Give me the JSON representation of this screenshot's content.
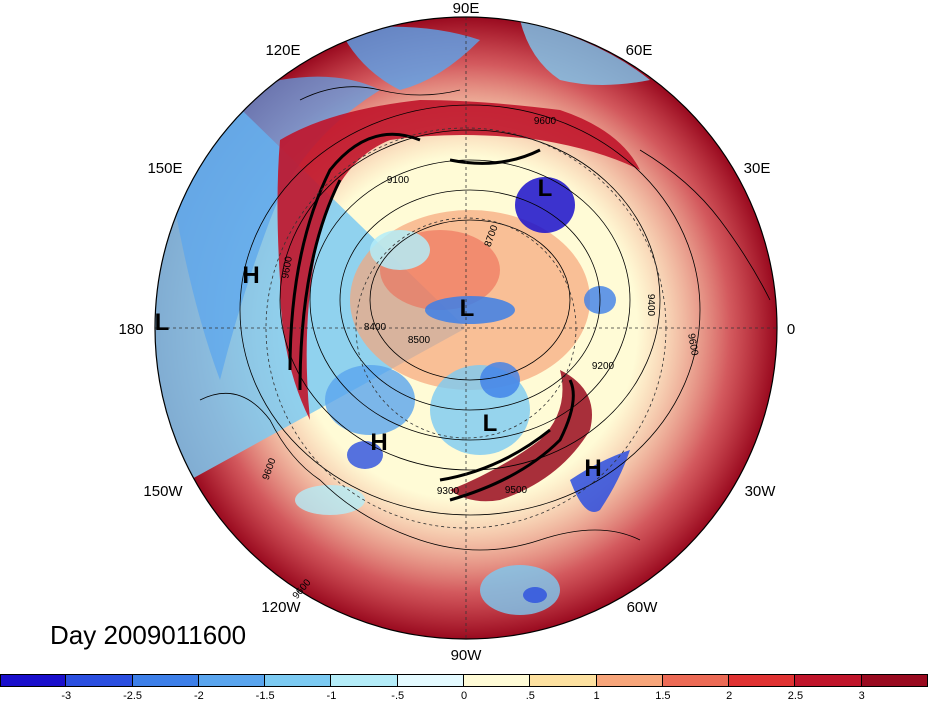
{
  "title": "Day 2009011600",
  "longitude_labels": {
    "top": "90E",
    "upper_left": "120E",
    "upper_right": "60E",
    "left_upper": "150E",
    "right_upper": "30E",
    "left": "180",
    "right": "0",
    "left_lower": "150W",
    "right_lower": "30W",
    "lower_left": "120W",
    "lower_right": "60W",
    "bottom": "90W"
  },
  "pressure_centers": [
    {
      "type": "H",
      "region": "north-pacific"
    },
    {
      "type": "L",
      "region": "dateline"
    },
    {
      "type": "L",
      "region": "north-pole"
    },
    {
      "type": "L",
      "region": "siberia"
    },
    {
      "type": "H",
      "region": "alaska"
    },
    {
      "type": "L",
      "region": "hudson-bay"
    },
    {
      "type": "H",
      "region": "north-atlantic"
    }
  ],
  "contour_labels": [
    "9600",
    "9100",
    "8700",
    "8400",
    "8500",
    "9400",
    "9200",
    "9600",
    "9300",
    "9500",
    "9600",
    "9600",
    "9600"
  ],
  "colorbar": {
    "tick_labels": [
      "-3",
      "-2.5",
      "-2",
      "-1.5",
      "-1",
      "-.5",
      "0",
      ".5",
      "1",
      "1.5",
      "2",
      "2.5",
      "3"
    ],
    "colors": [
      "#1a0fcc",
      "#2b4fe0",
      "#3d7fe8",
      "#5aa5ee",
      "#7ccaf2",
      "#b4ecf8",
      "#e4faff",
      "#fffbd6",
      "#fde1a0",
      "#f7a57a",
      "#ec6a55",
      "#e03232",
      "#c0142a",
      "#990a1f"
    ]
  }
}
